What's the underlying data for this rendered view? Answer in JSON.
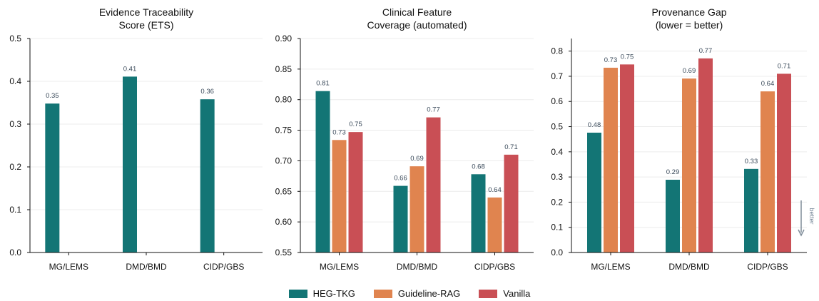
{
  "colors": {
    "HEG-TKG": "#137575",
    "Guideline-RAG": "#e0844f",
    "Vanilla": "#c94f55",
    "axis": "#111111",
    "grid": "#ececec"
  },
  "legend": [
    {
      "label": "HEG-TKG",
      "color": "#137575"
    },
    {
      "label": "Guideline-RAG",
      "color": "#e0844f"
    },
    {
      "label": "Vanilla",
      "color": "#c94f55"
    }
  ],
  "chart_data": [
    {
      "type": "bar",
      "title": [
        "Evidence Traceability",
        "Score (ETS)"
      ],
      "categories": [
        "MG/LEMS",
        "DMD/BMD",
        "CIDP/GBS"
      ],
      "ylim": [
        0,
        0.5
      ],
      "yticks": [
        "0.0",
        "0.1",
        "0.2",
        "0.3",
        "0.4",
        "0.5"
      ],
      "grid": true,
      "series": [
        {
          "name": "HEG-TKG",
          "values": [
            0.348,
            0.411,
            0.358
          ],
          "labels": [
            "0.35",
            "0.41",
            "0.36"
          ]
        },
        {
          "name": "Guideline-RAG",
          "values": [
            0,
            0,
            0
          ],
          "labels": [
            "",
            "",
            ""
          ]
        },
        {
          "name": "Vanilla",
          "values": [
            0,
            0,
            0
          ],
          "labels": [
            "",
            "",
            ""
          ]
        }
      ]
    },
    {
      "type": "bar",
      "title": [
        "Clinical Feature",
        "Coverage (automated)"
      ],
      "categories": [
        "MG/LEMS",
        "DMD/BMD",
        "CIDP/GBS"
      ],
      "ylim": [
        0.55,
        0.9
      ],
      "yticks": [
        "0.55",
        "0.60",
        "0.65",
        "0.70",
        "0.75",
        "0.80",
        "0.85",
        "0.90"
      ],
      "grid": true,
      "series": [
        {
          "name": "HEG-TKG",
          "values": [
            0.814,
            0.659,
            0.678
          ],
          "labels": [
            "0.81",
            "0.66",
            "0.68"
          ]
        },
        {
          "name": "Guideline-RAG",
          "values": [
            0.734,
            0.691,
            0.64
          ],
          "labels": [
            "0.73",
            "0.69",
            "0.64"
          ]
        },
        {
          "name": "Vanilla",
          "values": [
            0.747,
            0.771,
            0.71
          ],
          "labels": [
            "0.75",
            "0.77",
            "0.71"
          ]
        }
      ]
    },
    {
      "type": "bar",
      "title": [
        "Provenance Gap",
        "(lower = better)"
      ],
      "categories": [
        "MG/LEMS",
        "DMD/BMD",
        "CIDP/GBS"
      ],
      "ylim": [
        0,
        0.85
      ],
      "yticks": [
        "0.0",
        "0.1",
        "0.2",
        "0.3",
        "0.4",
        "0.5",
        "0.6",
        "0.7",
        "0.8"
      ],
      "grid": true,
      "annotation": "better",
      "series": [
        {
          "name": "HEG-TKG",
          "values": [
            0.476,
            0.289,
            0.332
          ],
          "labels": [
            "0.48",
            "0.29",
            "0.33"
          ]
        },
        {
          "name": "Guideline-RAG",
          "values": [
            0.734,
            0.691,
            0.64
          ],
          "labels": [
            "0.73",
            "0.69",
            "0.64"
          ]
        },
        {
          "name": "Vanilla",
          "values": [
            0.747,
            0.771,
            0.71
          ],
          "labels": [
            "0.75",
            "0.77",
            "0.71"
          ]
        }
      ]
    }
  ]
}
